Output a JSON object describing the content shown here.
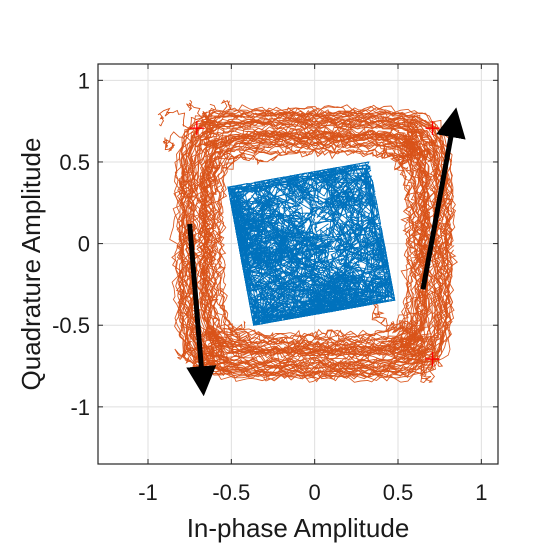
{
  "chart_data": {
    "type": "scatter",
    "xlabel": "In-phase Amplitude",
    "ylabel": "Quadrature Amplitude",
    "xlim": [
      -1.3,
      1.1
    ],
    "ylim": [
      -1.35,
      1.1
    ],
    "x_ticks": [
      -1,
      -0.5,
      0,
      0.5,
      1
    ],
    "x_tick_labels": [
      "-1",
      "-0.5",
      "0",
      "0.5",
      "1"
    ],
    "y_ticks": [
      1,
      0.5,
      0,
      -0.5,
      -1
    ],
    "y_tick_labels": [
      "1",
      "0.5",
      "0",
      "-0.5",
      "-1"
    ],
    "grid": true,
    "colors": {
      "outer_trajectory": "#D95319",
      "inner_trajectory": "#0072BD",
      "reference_marker": "#FF0000",
      "arrow": "#000000"
    },
    "series": [
      {
        "marker": "+",
        "points": [
          [
            -0.707,
            0.707
          ],
          [
            0.707,
            0.707
          ],
          [
            0.707,
            -0.707
          ]
        ]
      }
    ],
    "arrows": [
      {
        "from": [
          -0.75,
          0.12
        ],
        "to": [
          -0.67,
          -0.88
        ]
      },
      {
        "from": [
          0.65,
          -0.28
        ],
        "to": [
          0.84,
          0.78
        ]
      }
    ]
  }
}
